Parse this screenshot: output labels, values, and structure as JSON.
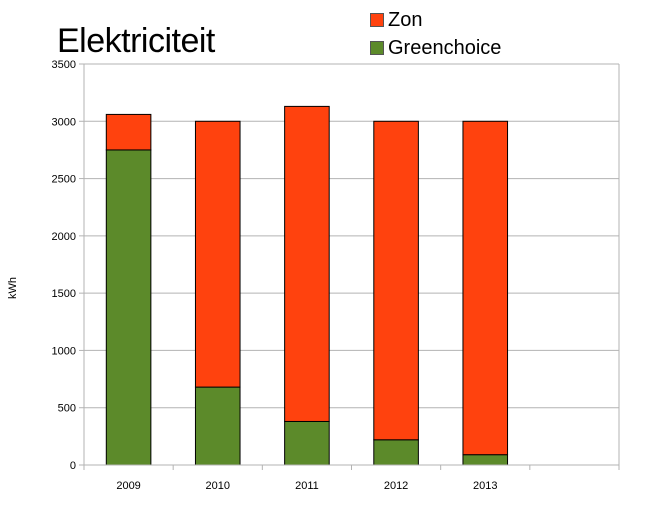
{
  "chart_data": {
    "type": "bar",
    "stacked": true,
    "title": "Elektriciteit",
    "xlabel": "",
    "ylabel": "kWh",
    "ylim": [
      0,
      3500
    ],
    "yticks": [
      0,
      500,
      1000,
      1500,
      2000,
      2500,
      3000,
      3500
    ],
    "categories": [
      "2009",
      "2010",
      "2011",
      "2012",
      "2013"
    ],
    "x_slots": 6,
    "grid": true,
    "legend_position": "top-right",
    "series": [
      {
        "name": "Greenchoice",
        "color": "#5c8a2a",
        "values": [
          2750,
          680,
          380,
          220,
          90
        ]
      },
      {
        "name": "Zon",
        "color": "#ff420e",
        "values": [
          310,
          2320,
          2750,
          2780,
          2910
        ]
      }
    ]
  }
}
